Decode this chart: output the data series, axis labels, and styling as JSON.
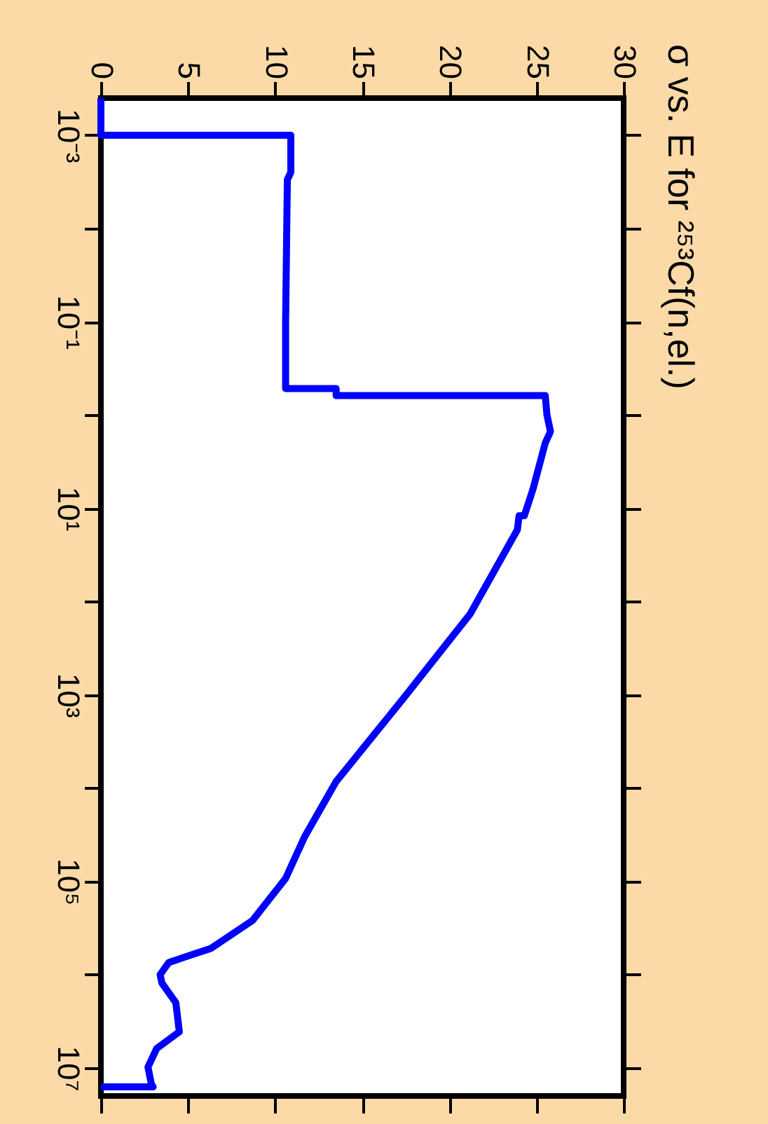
{
  "chart_data": {
    "type": "line",
    "title": "σ vs. E for ²⁵³Cf(n,el.)",
    "log": "y",
    "grid": false,
    "marker": "none",
    "line_style": "solid",
    "x": [
      0,
      0,
      10.9,
      10.9,
      10.7,
      10.6,
      10.6,
      13.5,
      13.5,
      25.5,
      25.6,
      25.8,
      25.5,
      24.8,
      24.3,
      24.0,
      23.9,
      21.2,
      17.4,
      13.5,
      11.7,
      10.6,
      8.7,
      6.3,
      3.9,
      3.4,
      3.5,
      4.3,
      4.5,
      3.2,
      2.7,
      2.9,
      3.0,
      0
    ],
    "series": [
      {
        "color": "#0000ff",
        "values": [
          0.0004,
          0.001,
          0.001,
          0.0025,
          0.003,
          0.1,
          0.52,
          0.52,
          0.62,
          0.62,
          1.0,
          1.5,
          2.0,
          6.2,
          12,
          12,
          17,
          135,
          1070,
          8500,
          33000,
          93000,
          263000,
          525000,
          740000,
          1000000,
          1230000,
          2000000,
          4100000,
          6200000,
          9800000,
          15000000,
          16000000,
          16000000
        ]
      }
    ],
    "ylim": [
      20000000,
      0.0004
    ],
    "yticks": [
      {
        "value": 0.001,
        "label": "10⁻³"
      },
      {
        "value": 0.01,
        "label": null
      },
      {
        "value": 0.1,
        "label": "10⁻¹"
      },
      {
        "value": 1,
        "label": null
      },
      {
        "value": 10,
        "label": "10¹"
      },
      {
        "value": 100,
        "label": null
      },
      {
        "value": 1000,
        "label": "10³"
      },
      {
        "value": 10000,
        "label": null
      },
      {
        "value": 100000,
        "label": "10⁵"
      },
      {
        "value": 1000000,
        "label": null
      },
      {
        "value": 10000000,
        "label": "10⁷"
      }
    ],
    "xlim": [
      0,
      30
    ],
    "xticks": [
      0,
      5,
      10,
      15,
      20,
      25,
      30
    ]
  }
}
